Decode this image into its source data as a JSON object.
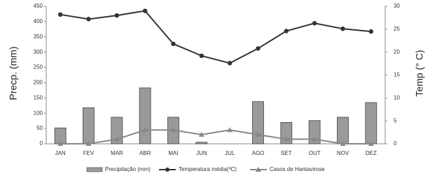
{
  "chart_data": {
    "type": "bar-line",
    "categories": [
      "JAN",
      "FEV",
      "MAR",
      "ABR",
      "MAI",
      "JUN",
      "JUL",
      "AGO",
      "SET",
      "OUT",
      "NOV",
      "DEZ"
    ],
    "series": [
      {
        "name": "Precipitação  (mm)",
        "type": "bar",
        "color": "#9a9a9a",
        "values": [
          52,
          118,
          87,
          183,
          87,
          5,
          0,
          138,
          70,
          76,
          87,
          135
        ]
      },
      {
        "name": "Temperatura média(ºC)",
        "type": "line",
        "axis": "y2",
        "color": "#333333",
        "marker": "circle",
        "values": [
          28.2,
          27.2,
          28.0,
          29.0,
          21.8,
          19.2,
          17.6,
          20.8,
          24.6,
          26.3,
          25.1,
          24.5
        ]
      },
      {
        "name": "Casos de Hantavirose",
        "type": "line",
        "axis": "y2",
        "color": "#888888",
        "marker": "triangle",
        "values": [
          0,
          0,
          1,
          3,
          3,
          2,
          3,
          2,
          1,
          1,
          0,
          0
        ]
      }
    ],
    "ylabel": "Precp. (mm)",
    "y2label": "Temp (° C)",
    "ylim": [
      0,
      450
    ],
    "yticks": [
      0,
      50,
      100,
      150,
      200,
      250,
      300,
      350,
      400,
      450
    ],
    "y2lim": [
      0,
      30
    ],
    "y2ticks": [
      0,
      5,
      10,
      15,
      20,
      25,
      30
    ],
    "legend": "bottom"
  }
}
